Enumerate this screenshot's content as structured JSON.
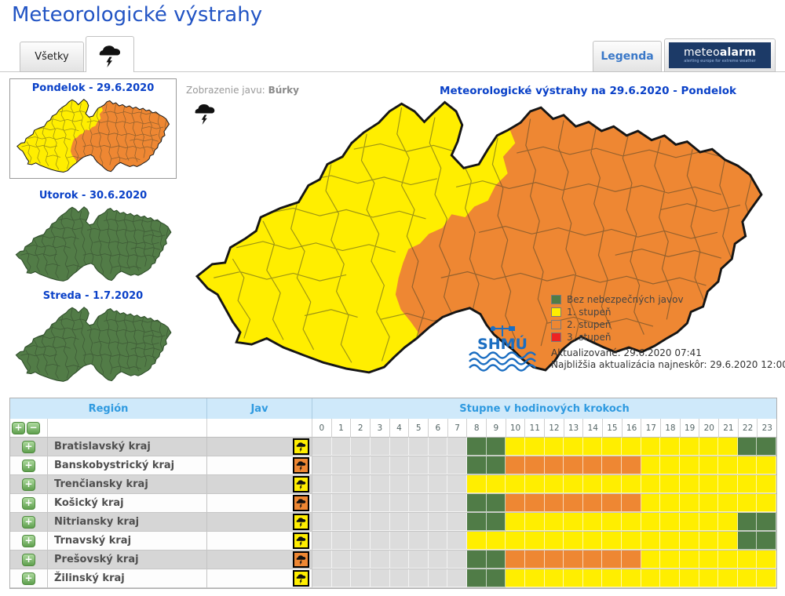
{
  "page_title": "Meteorologické výstrahy",
  "tabs": {
    "all_label": "Všetky",
    "storm_tab": "storm-icon"
  },
  "header": {
    "legend_label": "Legenda",
    "meteoalarm": {
      "name_regular": "meteo",
      "name_bold": "alarm",
      "tagline": "alerting europe for extreme weather"
    }
  },
  "day_maps": [
    {
      "title": "Pondelok - 29.6.2020",
      "type": "warning",
      "selected": true
    },
    {
      "title": "Utorok - 30.6.2020",
      "type": "none",
      "selected": false
    },
    {
      "title": "Streda - 1.7.2020",
      "type": "none",
      "selected": false
    }
  ],
  "main_map": {
    "phenomenon_label": "Zobrazenie javu:",
    "phenomenon_value": "Búrky",
    "title": "Meteorologické výstrahy na 29.6.2020 - Pondelok",
    "legend": [
      {
        "label": "Bez nebezpečných javov",
        "level": "g"
      },
      {
        "label": "1. stupeň",
        "level": "y"
      },
      {
        "label": "2. stupeň",
        "level": "o"
      },
      {
        "label": "3. stupeň",
        "level": "r"
      }
    ],
    "shmu_logo_text": "SHMÚ",
    "updated": "Aktualizované: 29.6.2020 07:41",
    "next_update": "Najbližšia aktualizácia najneskôr: 29.6.2020 12:00"
  },
  "colors": {
    "levels": {
      "n": "#dcdcdc",
      "g": "#507c47",
      "y": "#ffee00",
      "o": "#ee8733",
      "r": "#ee2222"
    },
    "map_yellow": "#ffee00",
    "map_orange": "#ee8733",
    "map_green": "#527c47",
    "title_blue": "#2254c4",
    "table_header_blue": "#2f9ae0"
  },
  "table": {
    "col_region": "Región",
    "col_jav": "Jav",
    "col_steps": "Stupne v hodinových krokoch",
    "hours": [
      "0",
      "1",
      "2",
      "3",
      "4",
      "5",
      "6",
      "7",
      "8",
      "9",
      "10",
      "11",
      "12",
      "13",
      "14",
      "15",
      "16",
      "17",
      "18",
      "19",
      "20",
      "21",
      "22",
      "23"
    ],
    "rows": [
      {
        "region": "Bratislavský kraj",
        "jav": "y",
        "hours": [
          "n",
          "n",
          "n",
          "n",
          "n",
          "n",
          "n",
          "n",
          "g",
          "g",
          "y",
          "y",
          "y",
          "y",
          "y",
          "y",
          "y",
          "y",
          "y",
          "y",
          "y",
          "y",
          "g",
          "g"
        ]
      },
      {
        "region": "Banskobystrický kraj",
        "jav": "o",
        "hours": [
          "n",
          "n",
          "n",
          "n",
          "n",
          "n",
          "n",
          "n",
          "g",
          "g",
          "o",
          "o",
          "o",
          "o",
          "o",
          "o",
          "o",
          "y",
          "y",
          "y",
          "y",
          "y",
          "y",
          "y"
        ]
      },
      {
        "region": "Trenčiansky kraj",
        "jav": "y",
        "hours": [
          "n",
          "n",
          "n",
          "n",
          "n",
          "n",
          "n",
          "n",
          "y",
          "y",
          "y",
          "y",
          "y",
          "y",
          "y",
          "y",
          "y",
          "y",
          "y",
          "y",
          "y",
          "y",
          "y",
          "y"
        ]
      },
      {
        "region": "Košický kraj",
        "jav": "o",
        "hours": [
          "n",
          "n",
          "n",
          "n",
          "n",
          "n",
          "n",
          "n",
          "g",
          "g",
          "o",
          "o",
          "o",
          "o",
          "o",
          "o",
          "o",
          "y",
          "y",
          "y",
          "y",
          "y",
          "y",
          "y"
        ]
      },
      {
        "region": "Nitriansky kraj",
        "jav": "y",
        "hours": [
          "n",
          "n",
          "n",
          "n",
          "n",
          "n",
          "n",
          "n",
          "g",
          "g",
          "y",
          "y",
          "y",
          "y",
          "y",
          "y",
          "y",
          "y",
          "y",
          "y",
          "y",
          "y",
          "g",
          "g"
        ]
      },
      {
        "region": "Trnavský kraj",
        "jav": "y",
        "hours": [
          "n",
          "n",
          "n",
          "n",
          "n",
          "n",
          "n",
          "n",
          "y",
          "y",
          "y",
          "y",
          "y",
          "y",
          "y",
          "y",
          "y",
          "y",
          "y",
          "y",
          "y",
          "y",
          "g",
          "g"
        ]
      },
      {
        "region": "Prešovský kraj",
        "jav": "o",
        "hours": [
          "n",
          "n",
          "n",
          "n",
          "n",
          "n",
          "n",
          "n",
          "g",
          "g",
          "o",
          "o",
          "o",
          "o",
          "o",
          "o",
          "o",
          "y",
          "y",
          "y",
          "y",
          "y",
          "y",
          "y"
        ]
      },
      {
        "region": "Žilinský kraj",
        "jav": "y",
        "hours": [
          "n",
          "n",
          "n",
          "n",
          "n",
          "n",
          "n",
          "n",
          "g",
          "g",
          "y",
          "y",
          "y",
          "y",
          "y",
          "y",
          "y",
          "y",
          "y",
          "y",
          "y",
          "y",
          "y",
          "y"
        ]
      }
    ],
    "expand_plus": "+",
    "collapse_minus": "−"
  }
}
